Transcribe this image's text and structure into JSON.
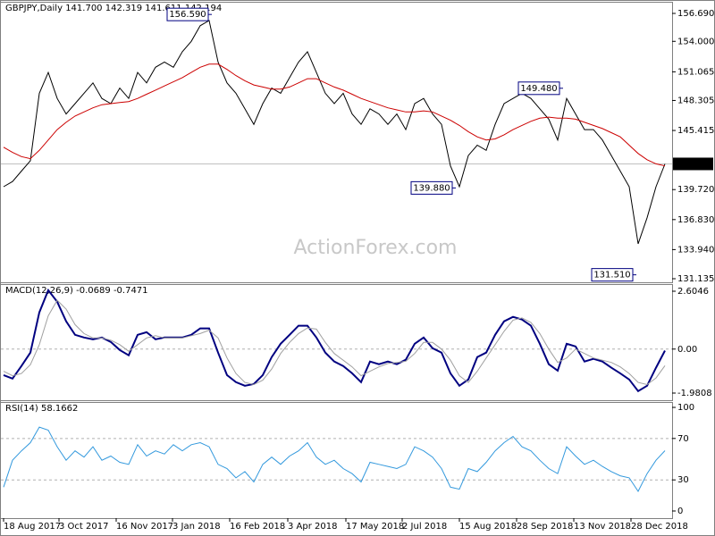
{
  "chart_data": [
    {
      "type": "line",
      "title": "GBPJPY,Daily",
      "ohlc": [
        {
          "value": 141.7,
          "label": "141.700"
        },
        142.319,
        141.611,
        142.194
      ],
      "ylim": [
        130.79,
        157.81
      ],
      "yticks": [
        {
          "value": 156.69,
          "label": "156.690"
        },
        {
          "value": 154,
          "label": "154.000"
        },
        151.065,
        148.305,
        145.415,
        {
          "value": 139.72,
          "label": "139.720"
        },
        {
          "value": 136.83,
          "label": "136.830"
        },
        {
          "value": 133.94,
          "label": "133.940"
        },
        131.135
      ],
      "xlim": [
        0,
        74
      ],
      "xticks": [
        {
          "value": 0,
          "label": "18 Aug 2017"
        },
        {
          "value": 6.2,
          "label": "3 Oct 2017"
        },
        {
          "value": 12.6,
          "label": "16 Nov 2017"
        },
        {
          "value": 18.9,
          "label": "3 Jan 2018"
        },
        {
          "value": 25.3,
          "label": "16 Feb 2018"
        },
        {
          "value": 31.8,
          "label": "3 Apr 2018"
        },
        {
          "value": 38.3,
          "label": "17 May 2018"
        },
        {
          "value": 44.6,
          "label": "2 Jul 2018"
        },
        {
          "value": 51,
          "label": "15 Aug 2018"
        },
        {
          "value": 57.4,
          "label": "28 Sep 2018"
        },
        {
          "value": 63.8,
          "label": "13 Nov 2018"
        },
        {
          "value": 70.2,
          "label": "28 Dec 2018"
        }
      ],
      "current_price": 142.194,
      "annotations": [
        {
          "value": 156.59,
          "label": "156.590",
          "x": 23.3
        },
        {
          "value": 139.88,
          "label": "139.880",
          "x": 50.6
        },
        {
          "value": 149.48,
          "label": "149.480",
          "x": 62.6
        },
        {
          "value": 131.51,
          "label": "131.510",
          "x": 70.8
        }
      ],
      "watermark": "ActionForex.com",
      "series": [
        {
          "color": "#000000",
          "values": [
            140,
            140.5,
            141.5,
            142.5,
            149,
            151,
            148.5,
            147,
            148,
            149,
            150,
            148.5,
            148,
            149.5,
            148.5,
            151,
            150,
            151.5,
            152,
            151.5,
            153,
            154,
            155.5,
            156,
            152,
            150,
            149,
            147.5,
            146,
            148,
            149.5,
            149,
            150.5,
            152,
            153,
            151,
            149,
            148,
            149,
            147,
            146,
            147.5,
            147,
            146,
            147,
            145.5,
            148,
            148.5,
            147,
            146,
            142,
            140,
            143,
            144,
            143.5,
            146,
            148,
            148.5,
            149,
            148.5,
            147.5,
            146.5,
            144.5,
            148.5,
            147,
            145.5,
            145.5,
            144.5,
            143,
            141.5,
            140,
            134.5,
            137,
            140,
            142.194
          ]
        },
        {
          "color": "#cc0000",
          "values": [
            143.8,
            143.3,
            142.9,
            142.7,
            143.5,
            144.5,
            145.5,
            146.2,
            146.8,
            147.2,
            147.6,
            147.9,
            148,
            148.1,
            148.2,
            148.5,
            148.9,
            149.3,
            149.7,
            150.1,
            150.5,
            151,
            151.5,
            151.8,
            151.8,
            151.3,
            150.7,
            150.2,
            149.8,
            149.6,
            149.4,
            149.4,
            149.6,
            150,
            150.4,
            150.4,
            150,
            149.6,
            149.3,
            148.9,
            148.5,
            148.2,
            147.9,
            147.6,
            147.4,
            147.2,
            147.2,
            147.3,
            147.2,
            146.8,
            146.4,
            145.9,
            145.3,
            144.8,
            144.5,
            144.6,
            145,
            145.5,
            145.9,
            146.3,
            146.6,
            146.7,
            146.6,
            146.6,
            146.5,
            146.2,
            145.9,
            145.6,
            145.2,
            144.8,
            144,
            143.2,
            142.6,
            142.2,
            142
          ]
        }
      ]
    },
    {
      "type": "line",
      "title": "MACD(12,26,9)",
      "ylim": [
        -2.302,
        2.926
      ],
      "yticks": [
        2.6046,
        {
          "value": 0,
          "label": "0.00"
        },
        -1.9808
      ],
      "levels": [
        0
      ],
      "series": [
        {
          "color": "#000080",
          "values": [
            -1.17,
            -1.33,
            -0.76,
            -0.16,
            1.65,
            2.65,
            2.13,
            1.25,
            0.64,
            0.52,
            0.44,
            0.52,
            0.32,
            -0.04,
            -0.28,
            0.64,
            0.76,
            0.44,
            0.52,
            0.52,
            0.52,
            0.64,
            0.93,
            0.93,
            -0.16,
            -1.17,
            -1.49,
            -1.65,
            -1.57,
            -1.17,
            -0.36,
            0.24,
            0.64,
            1.05,
            1.05,
            0.52,
            -0.16,
            -0.56,
            -0.76,
            -1.09,
            -1.49,
            -0.56,
            -0.68,
            -0.56,
            -0.68,
            -0.48,
            0.24,
            0.52,
            0.04,
            -0.16,
            -1.09,
            -1.65,
            -1.37,
            -0.36,
            -0.16,
            0.64,
            1.25,
            1.45,
            1.33,
            1.05,
            0.24,
            -0.68,
            -0.97,
            0.24,
            0.12,
            -0.56,
            -0.44,
            -0.56,
            -0.84,
            -1.09,
            -1.37,
            -1.89,
            -1.65,
            -0.84,
            -0.0689
          ]
        },
        {
          "color": "#a0a0a0",
          "values": [
            -1.0,
            -1.2,
            -1.1,
            -0.7,
            0.2,
            1.5,
            2.2,
            1.8,
            1.1,
            0.7,
            0.5,
            0.5,
            0.4,
            0.2,
            -0.1,
            0.2,
            0.5,
            0.6,
            0.5,
            0.5,
            0.5,
            0.6,
            0.7,
            0.85,
            0.5,
            -0.4,
            -1.1,
            -1.5,
            -1.6,
            -1.4,
            -0.9,
            -0.2,
            0.3,
            0.7,
            0.95,
            0.9,
            0.3,
            -0.2,
            -0.5,
            -0.8,
            -1.2,
            -1.0,
            -0.8,
            -0.65,
            -0.6,
            -0.55,
            -0.2,
            0.3,
            0.3,
            0.0,
            -0.5,
            -1.2,
            -1.5,
            -1.0,
            -0.4,
            0.2,
            0.8,
            1.3,
            1.4,
            1.2,
            0.7,
            0.0,
            -0.6,
            -0.4,
            0.0,
            -0.2,
            -0.4,
            -0.5,
            -0.6,
            -0.8,
            -1.1,
            -1.5,
            -1.6,
            -1.3,
            -0.7471
          ]
        }
      ]
    },
    {
      "type": "line",
      "title": "RSI(14)",
      "ylim": [
        -6.9,
        105.2
      ],
      "yticks": [
        100,
        70,
        30,
        0
      ],
      "levels": [
        70,
        30
      ],
      "series": [
        {
          "color": "#3399dd",
          "values": [
            23,
            49,
            58,
            66,
            81,
            78,
            62,
            49,
            58,
            52,
            62,
            49,
            53,
            47,
            45,
            64,
            53,
            58,
            55,
            64,
            58,
            64,
            66,
            62,
            45,
            41,
            32,
            38,
            28,
            45,
            52,
            45,
            53,
            58,
            66,
            52,
            45,
            49,
            41,
            36,
            28,
            47,
            45,
            43,
            41,
            45,
            62,
            58,
            52,
            41,
            23,
            21,
            41,
            38,
            47,
            58,
            66,
            72,
            62,
            58,
            49,
            41,
            36,
            62,
            53,
            45,
            49,
            43,
            38,
            34,
            32,
            19,
            36,
            49,
            58.1662
          ]
        }
      ]
    }
  ]
}
